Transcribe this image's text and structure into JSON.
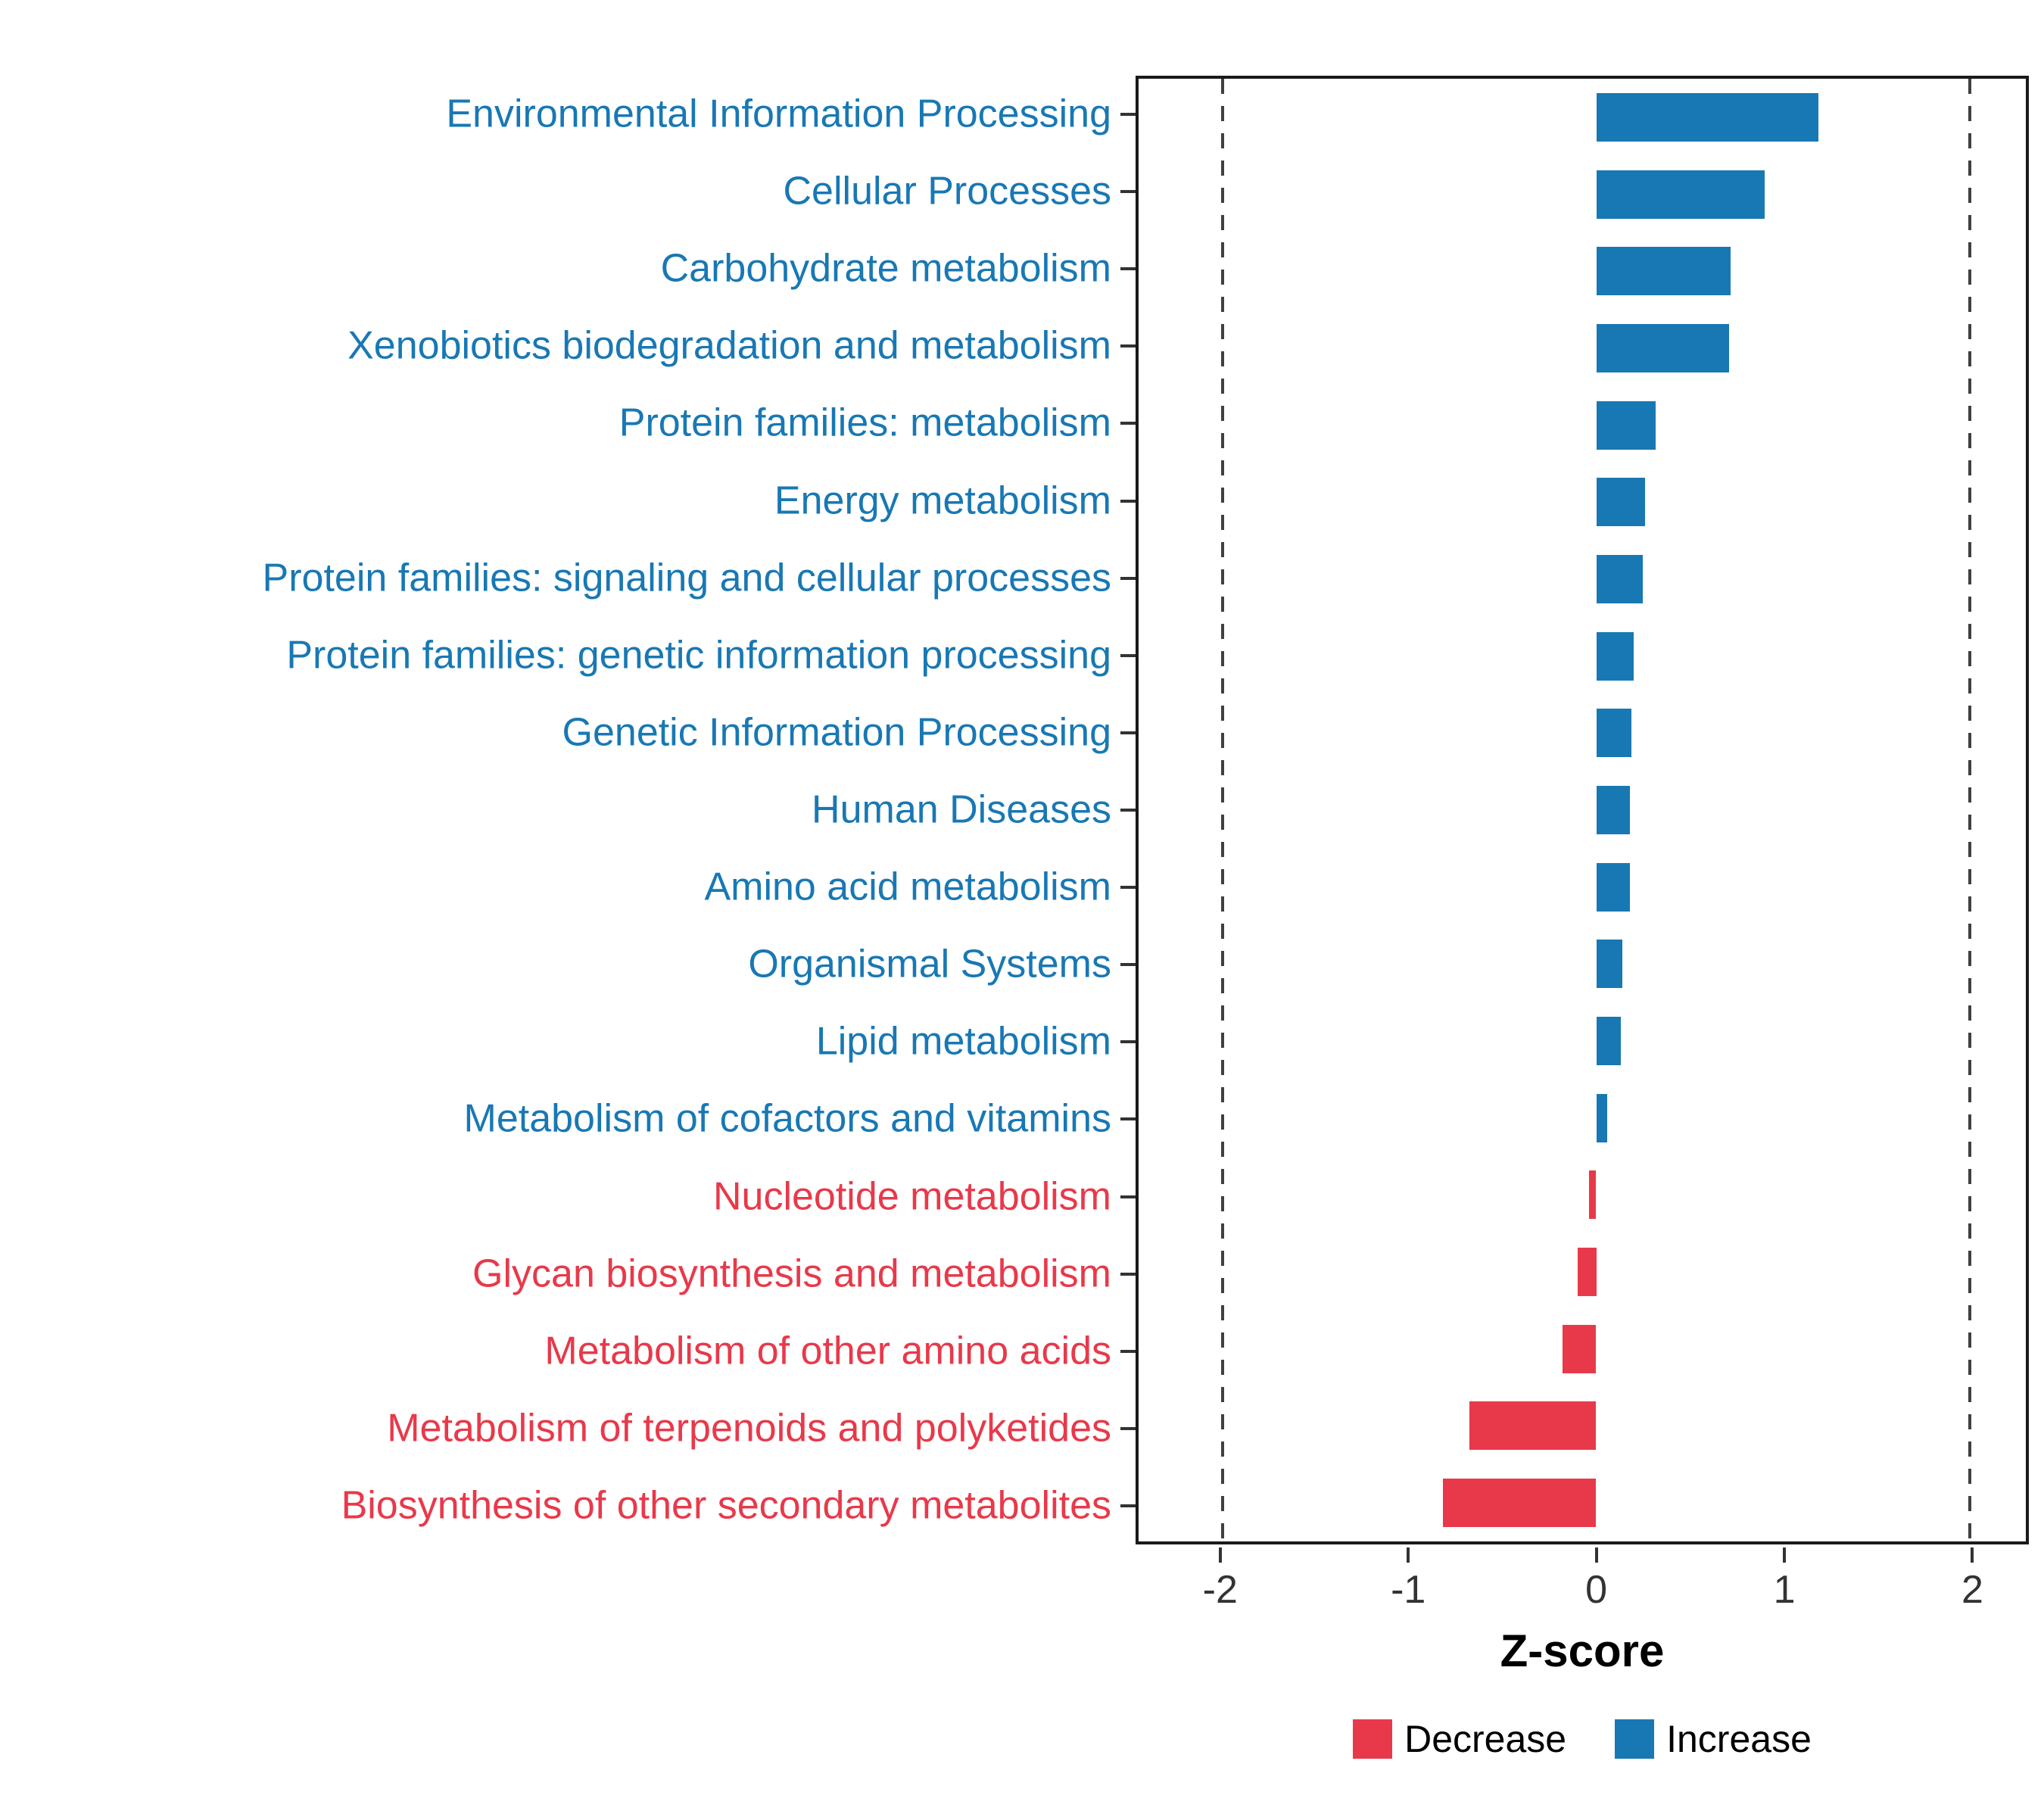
{
  "chart_data": {
    "type": "bar",
    "orientation": "horizontal",
    "title": "",
    "xlabel": "Z-score",
    "xlim": [
      -2.45,
      2.3
    ],
    "x_ticks": [
      -2,
      -1,
      0,
      1,
      2
    ],
    "reference_lines": [
      -2,
      2
    ],
    "grid": "off",
    "legend_position": "bottom",
    "colors": {
      "increase": "#1878B4",
      "decrease": "#E8394A"
    },
    "legend": [
      {
        "label": "Decrease",
        "group": "decrease"
      },
      {
        "label": "Increase",
        "group": "increase"
      }
    ],
    "categories": [
      "Environmental Information Processing",
      "Cellular Processes",
      "Carbohydrate metabolism",
      "Xenobiotics biodegradation and metabolism",
      "Protein families: metabolism",
      "Energy metabolism",
      "Protein families: signaling and cellular processes",
      "Protein families: genetic information processing",
      "Genetic Information Processing",
      "Human Diseases",
      "Amino acid metabolism",
      "Organismal Systems",
      "Lipid metabolism",
      "Metabolism of cofactors and vitamins",
      "Nucleotide metabolism",
      "Glycan biosynthesis and metabolism",
      "Metabolism of other amino acids",
      "Metabolism of terpenoids and polyketides",
      "Biosynthesis of other secondary metabolites"
    ],
    "values": [
      1.19,
      0.9,
      0.72,
      0.71,
      0.32,
      0.26,
      0.25,
      0.2,
      0.19,
      0.18,
      0.18,
      0.14,
      0.13,
      0.06,
      -0.04,
      -0.1,
      -0.18,
      -0.68,
      -0.82
    ],
    "groups": [
      "increase",
      "increase",
      "increase",
      "increase",
      "increase",
      "increase",
      "increase",
      "increase",
      "increase",
      "increase",
      "increase",
      "increase",
      "increase",
      "increase",
      "decrease",
      "decrease",
      "decrease",
      "decrease",
      "decrease"
    ]
  }
}
